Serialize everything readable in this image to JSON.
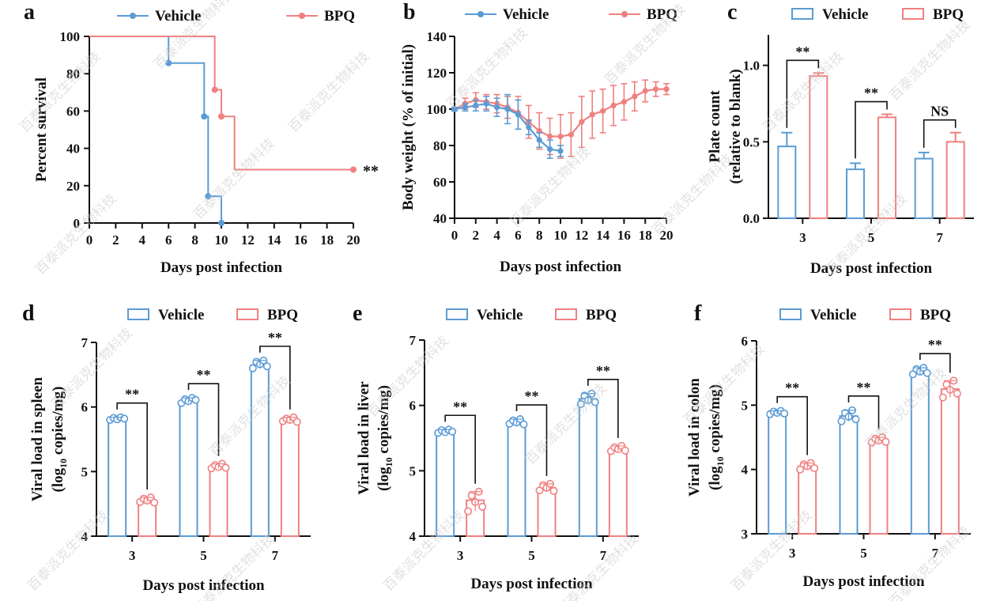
{
  "figure": {
    "watermark_text": "百泰派克生物科技",
    "colors": {
      "vehicle": "#5b9bd5",
      "bpq": "#f08080",
      "axis": "#111111",
      "watermark": "#c9c9c9"
    }
  },
  "chart_data": [
    {
      "panel": "a",
      "type": "survival-step",
      "xlabel": "Days post infection",
      "ylabel": "Percent survival",
      "xlim": [
        0,
        20
      ],
      "ylim": [
        0,
        100
      ],
      "xticks": [
        0,
        2,
        4,
        6,
        8,
        10,
        12,
        14,
        16,
        18,
        20
      ],
      "yticks": [
        0,
        20,
        40,
        60,
        80,
        100
      ],
      "legend": "top",
      "series": [
        {
          "name": "Vehicle",
          "steps": [
            [
              0,
              100
            ],
            [
              6,
              100
            ],
            [
              6,
              85.7
            ],
            [
              8.7,
              85.7
            ],
            [
              8.7,
              57.1
            ],
            [
              9,
              57.1
            ],
            [
              9,
              14.3
            ],
            [
              10,
              14.3
            ],
            [
              10,
              0
            ]
          ],
          "censor": [
            [
              6,
              85.7
            ],
            [
              8.7,
              57.1
            ],
            [
              9,
              14.3
            ],
            [
              10,
              0
            ]
          ]
        },
        {
          "name": "BPQ",
          "steps": [
            [
              0,
              100
            ],
            [
              9.5,
              100
            ],
            [
              9.5,
              71.4
            ],
            [
              10,
              71.4
            ],
            [
              10,
              57.1
            ],
            [
              11,
              57.1
            ],
            [
              11,
              28.6
            ],
            [
              20,
              28.6
            ]
          ],
          "censor": [
            [
              9.5,
              71.4
            ],
            [
              10,
              57.1
            ],
            [
              20,
              28.6
            ]
          ]
        }
      ],
      "annotation": "**"
    },
    {
      "panel": "b",
      "type": "line-errorbar",
      "xlabel": "Days post infection",
      "ylabel": "Body weight (% of initial)",
      "xlim": [
        0,
        20
      ],
      "ylim": [
        40,
        140
      ],
      "xticks": [
        0,
        2,
        4,
        6,
        8,
        10,
        12,
        14,
        16,
        18,
        20
      ],
      "yticks": [
        40,
        60,
        80,
        100,
        120,
        140
      ],
      "legend": "top",
      "series": [
        {
          "name": "Vehicle",
          "x": [
            0,
            1,
            2,
            3,
            4,
            5,
            6,
            7,
            8,
            9,
            10
          ],
          "y": [
            100,
            101,
            102,
            103,
            101,
            100,
            97,
            90,
            83,
            78,
            77
          ],
          "err": [
            1,
            2,
            3,
            4,
            5,
            8,
            8,
            4,
            4,
            5,
            3
          ]
        },
        {
          "name": "BPQ",
          "x": [
            0,
            1,
            2,
            3,
            4,
            5,
            6,
            7,
            8,
            9,
            10,
            11,
            12,
            13,
            14,
            15,
            16,
            17,
            18,
            19,
            20
          ],
          "y": [
            100,
            103,
            105,
            104,
            103,
            101,
            98,
            93,
            88,
            85,
            85,
            86,
            93,
            97,
            99,
            102,
            104,
            107,
            110,
            111,
            111
          ],
          "err": [
            1,
            3,
            4,
            4,
            5,
            6,
            9,
            9,
            10,
            10,
            12,
            12,
            14,
            13,
            12,
            11,
            10,
            8,
            6,
            4,
            3
          ]
        }
      ]
    },
    {
      "panel": "c",
      "type": "bar-errorbar",
      "xlabel": "Days post infection",
      "ylabel": "Plate count",
      "ylabel2": "(relative to blank)",
      "categories": [
        "3",
        "5",
        "7"
      ],
      "ylim": [
        0,
        1.2
      ],
      "yticks": [
        "0.0",
        "0.5",
        "1.0"
      ],
      "yticks_values": [
        0,
        0.5,
        1.0
      ],
      "legend": "top",
      "series": [
        {
          "name": "Vehicle",
          "values": [
            0.47,
            0.32,
            0.39
          ],
          "err": [
            0.09,
            0.04,
            0.04
          ]
        },
        {
          "name": "BPQ",
          "values": [
            0.93,
            0.66,
            0.5
          ],
          "err": [
            0.02,
            0.02,
            0.06
          ]
        }
      ],
      "significance": [
        "**",
        "**",
        "NS"
      ]
    },
    {
      "panel": "d",
      "type": "bar-dots",
      "xlabel": "Days post infection",
      "ylabel": "Viral load in spleen",
      "ylabel_unit_pre": "(log",
      "ylabel_unit_sub": "10",
      "ylabel_unit_post": " copies/mg)",
      "categories": [
        "3",
        "5",
        "7"
      ],
      "ylim": [
        4,
        7
      ],
      "yticks": [
        "4",
        "5",
        "6",
        "7"
      ],
      "yticks_values": [
        4,
        5,
        6,
        7
      ],
      "legend": "top",
      "series": [
        {
          "name": "Vehicle",
          "values": [
            5.82,
            6.1,
            6.65
          ],
          "points": [
            [
              5.8,
              5.83,
              5.81,
              5.84,
              5.82
            ],
            [
              6.06,
              6.12,
              6.09,
              6.14,
              6.11
            ],
            [
              6.6,
              6.7,
              6.66,
              6.72,
              6.63
            ]
          ]
        },
        {
          "name": "BPQ",
          "values": [
            4.55,
            5.08,
            5.8
          ],
          "points": [
            [
              4.53,
              4.58,
              4.55,
              4.6,
              4.52
            ],
            [
              5.05,
              5.1,
              5.07,
              5.12,
              5.06
            ],
            [
              5.78,
              5.82,
              5.8,
              5.84,
              5.77
            ]
          ]
        }
      ],
      "significance": [
        "**",
        "**",
        "**"
      ]
    },
    {
      "panel": "e",
      "type": "bar-dots",
      "xlabel": "Days post infection",
      "ylabel": "Viral load in liver",
      "ylabel_unit_pre": "(log",
      "ylabel_unit_sub": "10",
      "ylabel_unit_post": " copies/mg)",
      "categories": [
        "3",
        "5",
        "7"
      ],
      "ylim": [
        4,
        7
      ],
      "yticks": [
        "4",
        "5",
        "6",
        "7"
      ],
      "yticks_values": [
        4,
        5,
        6,
        7
      ],
      "legend": "top",
      "series": [
        {
          "name": "Vehicle",
          "values": [
            5.6,
            5.74,
            6.1
          ],
          "points": [
            [
              5.58,
              5.62,
              5.59,
              5.63,
              5.6
            ],
            [
              5.72,
              5.77,
              5.74,
              5.79,
              5.71
            ],
            [
              6.02,
              6.15,
              6.08,
              6.18,
              6.05
            ]
          ]
        },
        {
          "name": "BPQ",
          "values": [
            4.55,
            4.74,
            5.33
          ],
          "points": [
            [
              4.38,
              4.62,
              4.52,
              4.68,
              4.45
            ],
            [
              4.7,
              4.78,
              4.74,
              4.8,
              4.69
            ],
            [
              5.3,
              5.36,
              5.33,
              5.38,
              5.31
            ]
          ]
        }
      ],
      "significance": [
        "**",
        "**",
        "**"
      ]
    },
    {
      "panel": "f",
      "type": "bar-dots",
      "xlabel": "Days post infection",
      "ylabel": "Viral load in colon",
      "ylabel_unit_pre": "(log",
      "ylabel_unit_sub": "10",
      "ylabel_unit_post": " copies/mg)",
      "categories": [
        "3",
        "5",
        "7"
      ],
      "ylim": [
        3,
        6
      ],
      "yticks": [
        "3",
        "4",
        "5",
        "6"
      ],
      "yticks_values": [
        3,
        4,
        5,
        6
      ],
      "legend": "top",
      "series": [
        {
          "name": "Vehicle",
          "values": [
            4.88,
            4.83,
            5.52
          ],
          "points": [
            [
              4.86,
              4.9,
              4.88,
              4.91,
              4.87
            ],
            [
              4.75,
              4.88,
              4.82,
              4.92,
              4.78
            ],
            [
              5.48,
              5.56,
              5.52,
              5.58,
              5.5
            ]
          ]
        },
        {
          "name": "BPQ",
          "values": [
            4.05,
            4.45,
            5.25
          ],
          "points": [
            [
              4.0,
              4.08,
              4.05,
              4.1,
              4.02
            ],
            [
              4.42,
              4.48,
              4.45,
              4.5,
              4.43
            ],
            [
              5.12,
              5.32,
              5.24,
              5.38,
              5.18
            ]
          ]
        }
      ],
      "significance": [
        "**",
        "**",
        "**"
      ]
    }
  ]
}
